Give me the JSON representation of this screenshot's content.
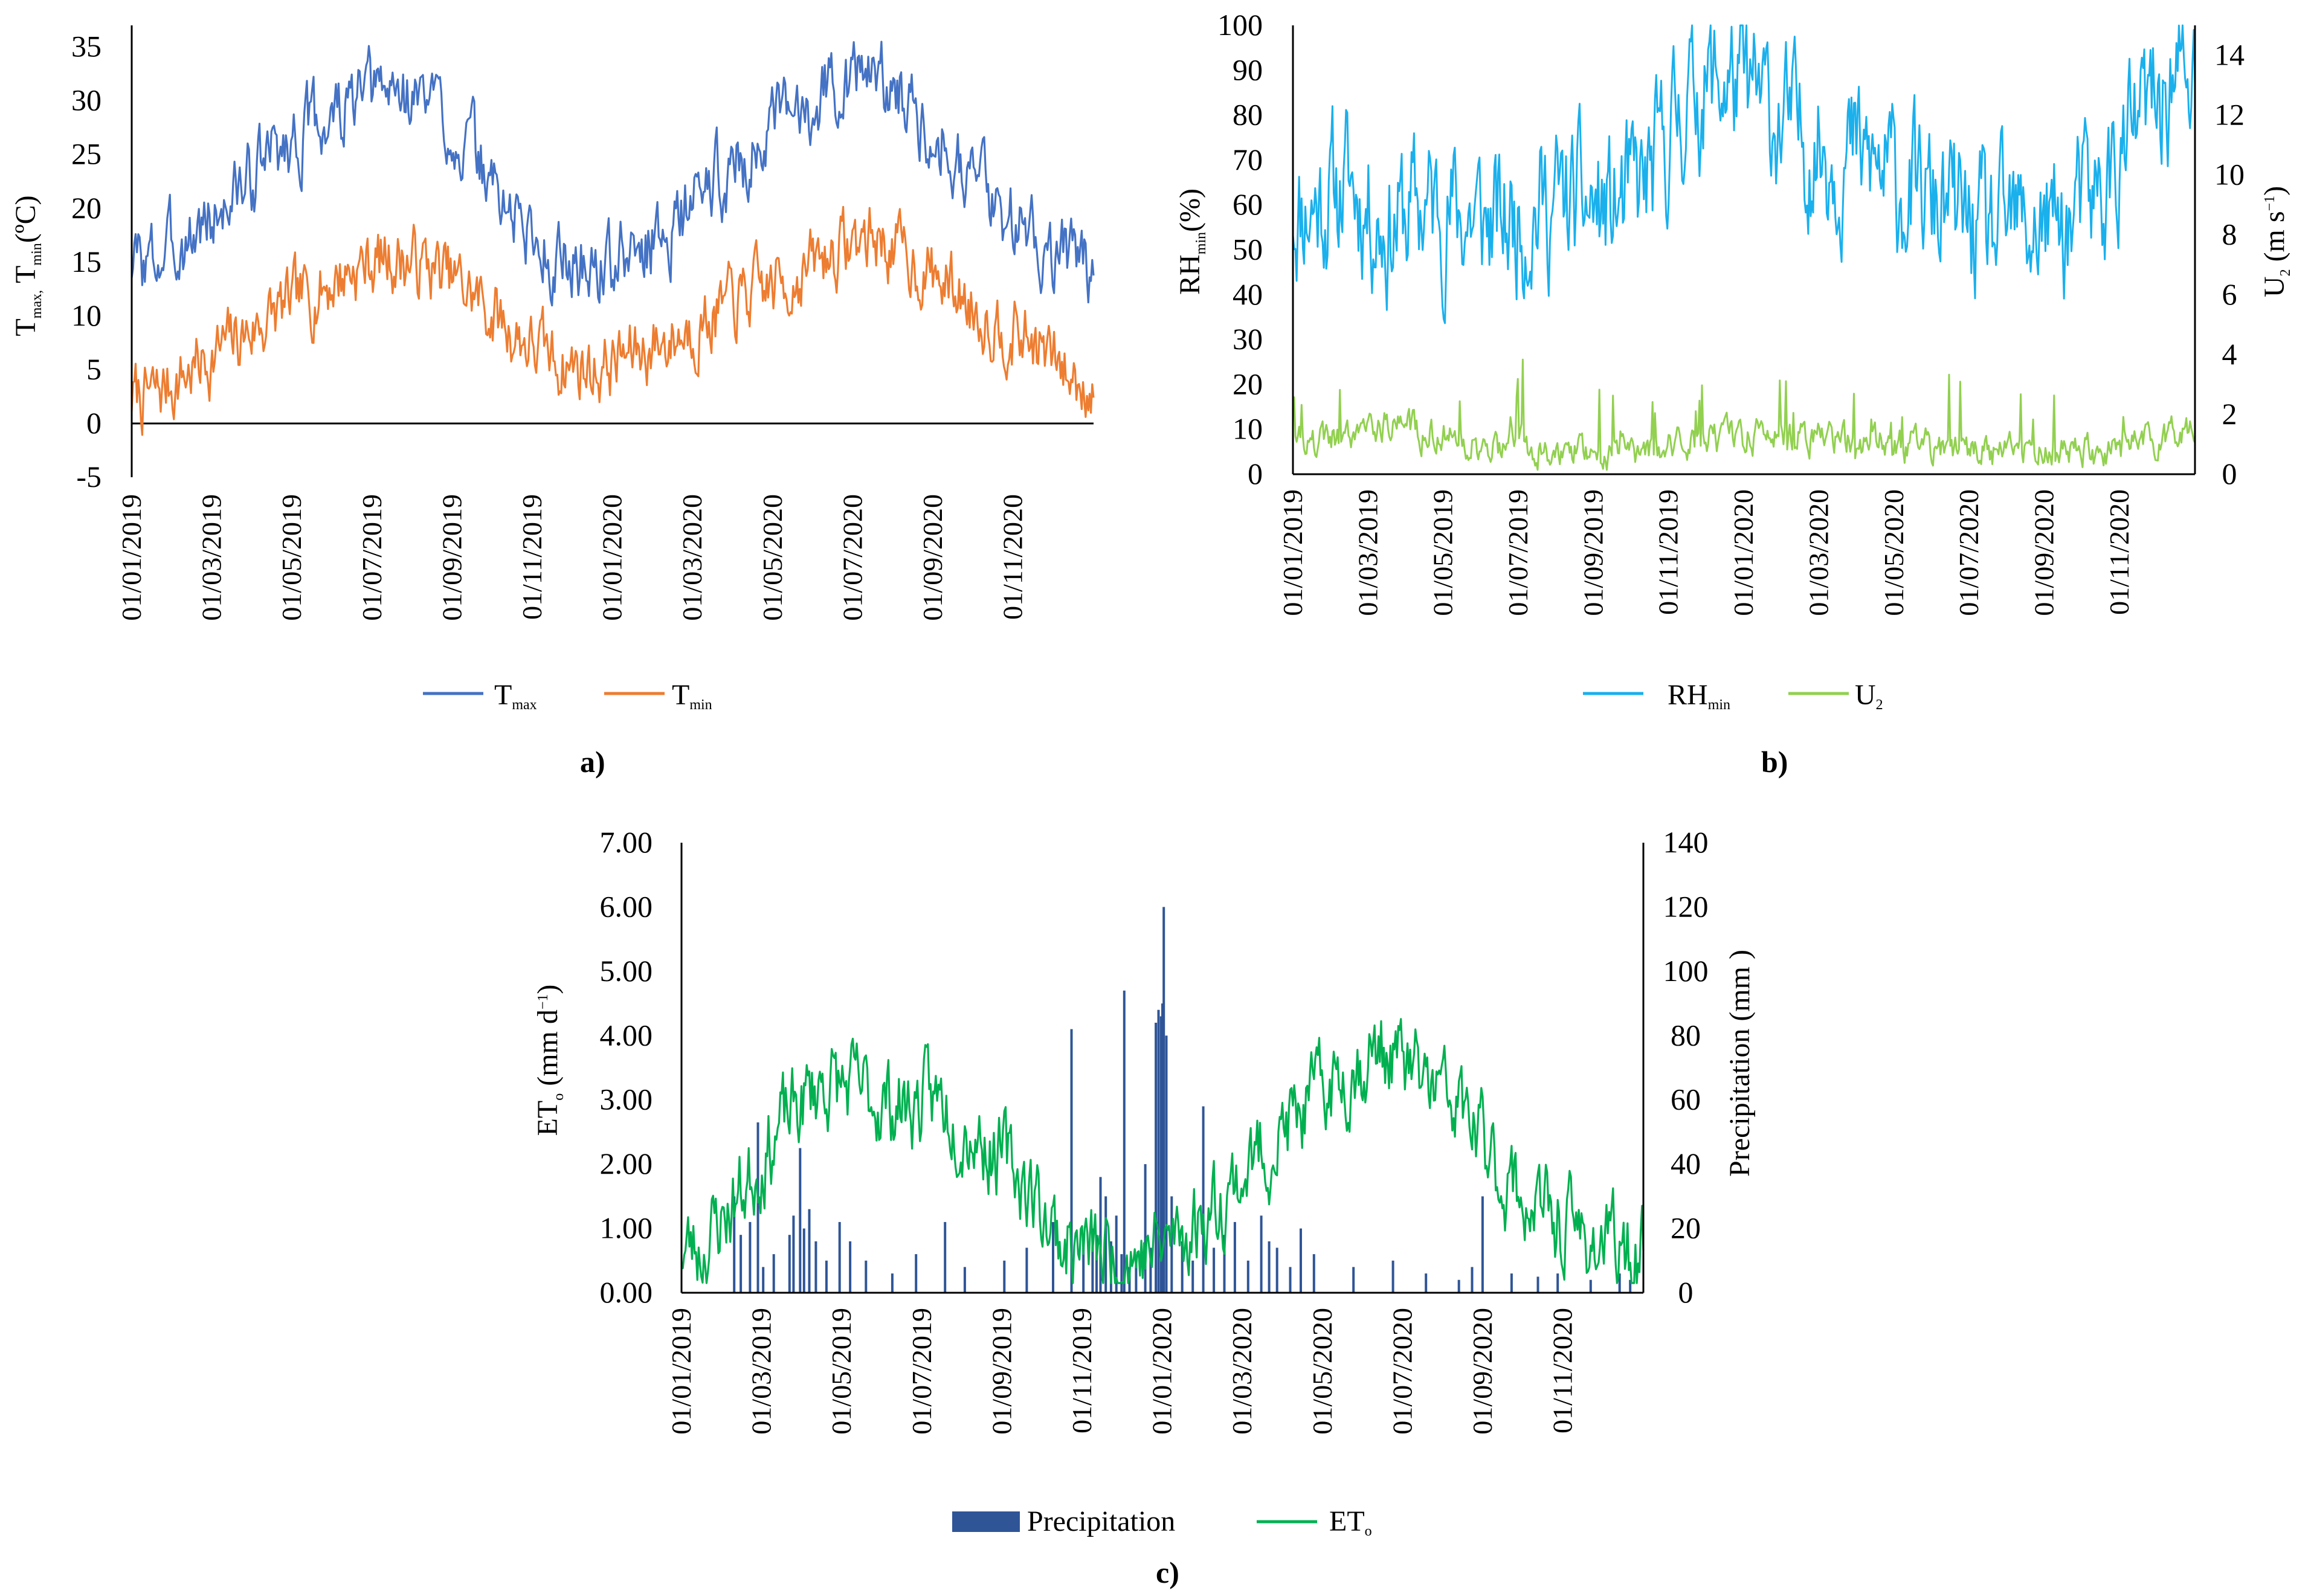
{
  "chart_data": [
    {
      "id": "a",
      "type": "line",
      "panel_label": "a)",
      "date_ticks": [
        "01/01/2019",
        "01/03/2019",
        "01/05/2019",
        "01/07/2019",
        "01/09/2019",
        "01/11/2019",
        "01/01/2020",
        "01/03/2020",
        "01/05/2020",
        "01/07/2020",
        "01/09/2020",
        "01/11/2020"
      ],
      "x_range_days": [
        0,
        730
      ],
      "ylim": [
        -5,
        37
      ],
      "yticks": [
        35,
        30,
        25,
        20,
        15,
        10,
        5,
        0,
        -5
      ],
      "ylabel": {
        "p1": "T",
        "s1": "max,",
        "p2": " T",
        "s2": "min",
        "p3": "(ºC)"
      },
      "zero_line": true,
      "series": [
        {
          "key": "tmax",
          "name": "T",
          "sub": "max",
          "color": "#4472c4",
          "generator": "seasonal daily series",
          "monthly_mean": [
            15.0,
            17.5,
            21.0,
            25.0,
            27.5,
            29.5,
            31.0,
            30.0,
            25.0,
            19.5,
            15.5,
            14.5,
            15.5,
            18.5,
            22.5,
            25.5,
            28.5,
            32.0,
            32.5,
            29.5,
            26.0,
            20.5,
            17.5,
            15.0
          ],
          "noise": 2.8,
          "seed": 3,
          "clamp": [
            9.0,
            36.5
          ]
        },
        {
          "key": "tmin",
          "name": "T",
          "sub": "min",
          "color": "#ed7d31",
          "generator": "seasonal daily series",
          "monthly_mean": [
            2.5,
            5.0,
            7.5,
            10.0,
            12.0,
            14.5,
            15.5,
            14.5,
            12.0,
            8.5,
            6.0,
            5.0,
            6.5,
            8.0,
            10.0,
            12.0,
            13.5,
            16.0,
            17.5,
            15.0,
            12.5,
            9.5,
            7.5,
            4.0
          ],
          "noise": 2.6,
          "seed": 7,
          "clamp": [
            -4.5,
            22.0
          ]
        }
      ]
    },
    {
      "id": "b",
      "type": "line",
      "panel_label": "b)",
      "date_ticks": [
        "01/01/2019",
        "01/03/2019",
        "01/05/2019",
        "01/07/2019",
        "01/09/2019",
        "01/11/2019",
        "01/01/2020",
        "01/03/2020",
        "01/05/2020",
        "01/07/2020",
        "01/09/2020",
        "01/11/2020"
      ],
      "x_range_days": [
        0,
        730
      ],
      "ylim_left": [
        0,
        100
      ],
      "yticks_left": [
        100,
        90,
        80,
        70,
        60,
        50,
        40,
        30,
        20,
        10,
        0
      ],
      "ylim_right": [
        0,
        15
      ],
      "yticks_right": [
        14,
        12,
        10,
        8,
        6,
        4,
        2,
        0
      ],
      "ylabel_left": {
        "p1": "RH",
        "s1": "min",
        "p2": "(%)"
      },
      "ylabel_right": {
        "p1": "U",
        "s1": "2",
        "p2": " (m s",
        "sup": "−1",
        "p3": ")"
      },
      "series": [
        {
          "key": "rhmin",
          "name": "RH",
          "sub": "min",
          "color": "#1ab0ec",
          "axis": "left",
          "generator": "seasonal daily series",
          "monthly_mean": [
            60,
            65,
            55,
            60,
            58,
            55,
            60,
            60,
            58,
            65,
            85,
            88,
            82,
            75,
            72,
            68,
            62,
            58,
            52,
            55,
            55,
            62,
            78,
            88
          ],
          "noise": 13,
          "seed": 11,
          "clamp": [
            20,
            100
          ]
        },
        {
          "key": "u2",
          "name": "U",
          "sub": "2",
          "color": "#92d050",
          "axis": "right",
          "generator": "spiky daily series",
          "monthly_mean": [
            1.0,
            1.5,
            1.8,
            1.4,
            1.1,
            0.9,
            0.9,
            0.9,
            0.8,
            0.9,
            0.9,
            1.2,
            1.3,
            1.4,
            1.0,
            1.0,
            0.9,
            0.8,
            0.8,
            0.8,
            0.7,
            0.8,
            1.0,
            1.2
          ],
          "noise": 0.45,
          "seed": 19,
          "clamp": [
            0.1,
            4.2
          ]
        }
      ]
    },
    {
      "id": "c",
      "type": "bar+line",
      "panel_label": "c)",
      "date_ticks": [
        "01/01/2019",
        "01/03/2019",
        "01/05/2019",
        "01/07/2019",
        "01/09/2019",
        "01/11/2019",
        "01/01/2020",
        "01/03/2020",
        "01/05/2020",
        "01/07/2020",
        "01/09/2020",
        "01/11/2020"
      ],
      "x_range_days": [
        0,
        730
      ],
      "ylim_left": [
        0,
        7
      ],
      "yticks_left": [
        "7.00",
        "6.00",
        "5.00",
        "4.00",
        "3.00",
        "2.00",
        "1.00",
        "0.00"
      ],
      "ylim_right": [
        0,
        140
      ],
      "yticks_right": [
        140,
        120,
        100,
        80,
        60,
        40,
        20,
        0
      ],
      "ylabel_left": {
        "p1": "ET",
        "s1": "o",
        "p2": " (mm d",
        "sup": "−1",
        "p3": ")"
      },
      "ylabel_right": "Precipitation  (mm )",
      "series": [
        {
          "key": "eto",
          "name": "ET",
          "sub": "o",
          "color": "#00b050",
          "axis": "left",
          "generator": "seasonal daily series",
          "monthly_mean": [
            0.7,
            1.6,
            2.6,
            3.3,
            3.1,
            2.9,
            3.0,
            2.4,
            1.8,
            0.8,
            0.6,
            0.6,
            0.9,
            1.5,
            2.2,
            2.8,
            3.4,
            3.8,
            3.3,
            2.8,
            1.8,
            1.2,
            0.9,
            0.6
          ],
          "noise": 0.55,
          "seed": 23,
          "clamp": [
            0.15,
            6.0
          ]
        },
        {
          "key": "precip",
          "name": "Precipitation",
          "color": "#2f5597",
          "axis": "right",
          "type": "bar",
          "bars": [
            [
              40,
              30
            ],
            [
              45,
              18
            ],
            [
              52,
              22
            ],
            [
              58,
              53
            ],
            [
              62,
              8
            ],
            [
              70,
              12
            ],
            [
              82,
              18
            ],
            [
              85,
              24
            ],
            [
              90,
              45
            ],
            [
              93,
              20
            ],
            [
              97,
              26
            ],
            [
              102,
              16
            ],
            [
              110,
              10
            ],
            [
              120,
              22
            ],
            [
              128,
              16
            ],
            [
              140,
              10
            ],
            [
              160,
              6
            ],
            [
              178,
              12
            ],
            [
              200,
              22
            ],
            [
              215,
              8
            ],
            [
              245,
              10
            ],
            [
              262,
              14
            ],
            [
              282,
              22
            ],
            [
              296,
              82
            ],
            [
              305,
              14
            ],
            [
              312,
              20
            ],
            [
              315,
              18
            ],
            [
              318,
              36
            ],
            [
              322,
              30
            ],
            [
              326,
              16
            ],
            [
              330,
              24
            ],
            [
              334,
              12
            ],
            [
              336,
              94
            ],
            [
              340,
              8
            ],
            [
              345,
              10
            ],
            [
              352,
              40
            ],
            [
              356,
              14
            ],
            [
              360,
              84
            ],
            [
              362,
              88
            ],
            [
              364,
              86
            ],
            [
              365,
              90
            ],
            [
              366,
              120
            ],
            [
              368,
              80
            ],
            [
              372,
              30
            ],
            [
              380,
              16
            ],
            [
              388,
              10
            ],
            [
              396,
              58
            ],
            [
              404,
              14
            ],
            [
              412,
              18
            ],
            [
              420,
              22
            ],
            [
              430,
              10
            ],
            [
              440,
              24
            ],
            [
              446,
              16
            ],
            [
              452,
              14
            ],
            [
              462,
              8
            ],
            [
              470,
              20
            ],
            [
              480,
              12
            ],
            [
              510,
              8
            ],
            [
              540,
              10
            ],
            [
              565,
              6
            ],
            [
              590,
              4
            ],
            [
              600,
              8
            ],
            [
              608,
              30
            ],
            [
              630,
              6
            ],
            [
              650,
              5
            ],
            [
              665,
              6
            ],
            [
              690,
              4
            ],
            [
              712,
              6
            ],
            [
              720,
              4
            ]
          ]
        }
      ]
    }
  ],
  "legends": {
    "a": [
      "T|max",
      "T|min"
    ],
    "b": [
      "RH|min",
      "U|2"
    ],
    "c": [
      "Precipitation",
      "ET|o"
    ]
  }
}
